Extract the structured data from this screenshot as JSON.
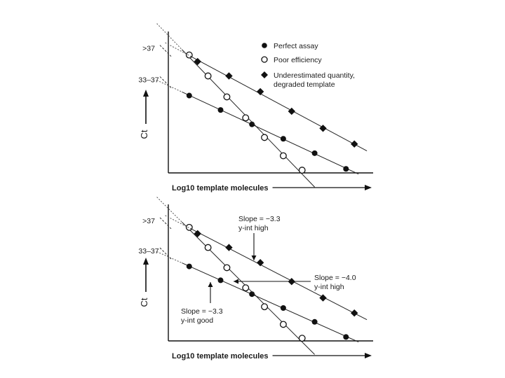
{
  "chart_data": [
    {
      "type": "scatter",
      "panel": "top",
      "xlabel": "Log10 template molecules",
      "ylabel": "Ct",
      "xlim": [
        0,
        10
      ],
      "ylim": [
        0,
        10
      ],
      "y_tick_labels": [
        {
          "label": ">37",
          "y": 8.9
        },
        {
          "label": "33–37",
          "y": 6.5
        }
      ],
      "legend": [
        {
          "marker": "circle-filled",
          "label": "Perfect assay"
        },
        {
          "marker": "circle-open",
          "label": "Poor efficiency"
        },
        {
          "marker": "diamond-filled",
          "label": "Underestimated quantity, degraded template"
        }
      ],
      "series": [
        {
          "name": "Perfect assay",
          "marker": "circle-filled",
          "points": [
            [
              1,
              5.8
            ],
            [
              2.5,
              4.7
            ],
            [
              4,
              3.6
            ],
            [
              5.5,
              2.5
            ],
            [
              7,
              1.4
            ],
            [
              8.5,
              0.2
            ]
          ]
        },
        {
          "name": "Poor efficiency",
          "marker": "circle-open",
          "points": [
            [
              1,
              8.9
            ],
            [
              1.9,
              7.3
            ],
            [
              2.8,
              5.7
            ],
            [
              3.7,
              4.1
            ],
            [
              4.6,
              2.6
            ],
            [
              5.5,
              1.2
            ],
            [
              6.4,
              0.1
            ]
          ]
        },
        {
          "name": "Underestimated quantity, degraded template",
          "marker": "diamond-filled",
          "points": [
            [
              1.4,
              8.4
            ],
            [
              2.9,
              7.3
            ],
            [
              4.4,
              6.1
            ],
            [
              5.9,
              4.6
            ],
            [
              7.4,
              3.3
            ],
            [
              8.9,
              2.1
            ]
          ]
        }
      ]
    },
    {
      "type": "scatter",
      "panel": "bottom",
      "xlabel": "Log10 template molecules",
      "ylabel": "Ct",
      "xlim": [
        0,
        10
      ],
      "ylim": [
        0,
        10
      ],
      "y_tick_labels": [
        {
          "label": ">37",
          "y": 8.9
        },
        {
          "label": "33–37",
          "y": 6.5
        }
      ],
      "annotations": [
        {
          "lines": [
            "Slope = −3.3",
            "y-int high"
          ],
          "arrow": "down"
        },
        {
          "lines": [
            "Slope = −4.0",
            "y-int high"
          ],
          "arrow": "left"
        },
        {
          "lines": [
            "Slope = −3.3",
            "y-int good"
          ],
          "arrow": "up"
        }
      ],
      "series": [
        {
          "name": "Perfect assay",
          "marker": "circle-filled",
          "points": [
            [
              1,
              5.8
            ],
            [
              2.5,
              4.7
            ],
            [
              4,
              3.6
            ],
            [
              5.5,
              2.5
            ],
            [
              7,
              1.4
            ],
            [
              8.5,
              0.2
            ]
          ]
        },
        {
          "name": "Poor efficiency",
          "marker": "circle-open",
          "points": [
            [
              1,
              8.9
            ],
            [
              1.9,
              7.3
            ],
            [
              2.8,
              5.7
            ],
            [
              3.7,
              4.1
            ],
            [
              4.6,
              2.6
            ],
            [
              5.5,
              1.2
            ],
            [
              6.4,
              0.1
            ]
          ]
        },
        {
          "name": "Underestimated quantity, degraded template",
          "marker": "diamond-filled",
          "points": [
            [
              1.4,
              8.4
            ],
            [
              2.9,
              7.3
            ],
            [
              4.4,
              6.1
            ],
            [
              5.9,
              4.6
            ],
            [
              7.4,
              3.3
            ],
            [
              8.9,
              2.1
            ]
          ]
        }
      ]
    }
  ]
}
